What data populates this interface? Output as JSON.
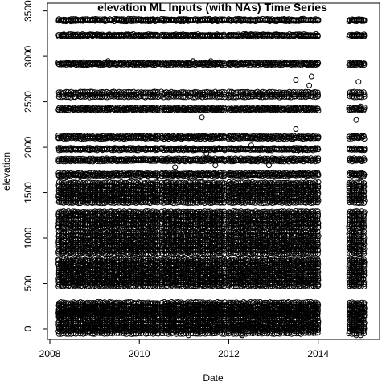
{
  "chart_data": {
    "type": "scatter",
    "title": "elevation ML Inputs (with NAs) Time Series",
    "xlabel": "Date",
    "ylabel": "elevation",
    "xlim": [
      2008.0,
      2015.3
    ],
    "ylim": [
      -80,
      3550
    ],
    "xticks": [
      2008,
      2010,
      2012,
      2014
    ],
    "xtick_labels": [
      "2008",
      "2010",
      "2012",
      "2014"
    ],
    "yticks": [
      0,
      500,
      1000,
      1500,
      2000,
      2500,
      3000,
      3500
    ],
    "ytick_labels": [
      "0",
      "500",
      "1000",
      "1500",
      "2000",
      "2500",
      "3000",
      "3500"
    ],
    "marker": "open-circle",
    "grid": false,
    "legend": "none",
    "segments": [
      {
        "start": 2008.2,
        "end": 2010.45
      },
      {
        "start": 2010.5,
        "end": 2011.95
      },
      {
        "start": 2012.0,
        "end": 2014.0
      },
      {
        "start": 2014.7,
        "end": 2015.05
      }
    ],
    "elevation_bands": [
      {
        "y": 3400,
        "spread": 8
      },
      {
        "y": 3230,
        "spread": 8
      },
      {
        "y": 2920,
        "spread": 10
      },
      {
        "y": 2580,
        "spread": 25
      },
      {
        "y": 2420,
        "spread": 12
      },
      {
        "y": 2110,
        "spread": 12
      },
      {
        "y": 1980,
        "spread": 8
      },
      {
        "y": 1860,
        "spread": 12
      },
      {
        "y": 1700,
        "spread": 12
      },
      {
        "y": 1500,
        "spread": 110
      },
      {
        "y": 1200,
        "spread": 90
      },
      {
        "y": 950,
        "spread": 120
      },
      {
        "y": 620,
        "spread": 150
      },
      {
        "y": 230,
        "spread": 60
      },
      {
        "y": 90,
        "spread": 90
      },
      {
        "y": -20,
        "spread": 30
      }
    ],
    "scattered_points": [
      {
        "x": 2009.3,
        "y": 2950
      },
      {
        "x": 2011.2,
        "y": 2950
      },
      {
        "x": 2011.6,
        "y": 2950
      },
      {
        "x": 2011.4,
        "y": 2330
      },
      {
        "x": 2013.5,
        "y": 2740
      },
      {
        "x": 2013.5,
        "y": 2200
      },
      {
        "x": 2013.85,
        "y": 2780
      },
      {
        "x": 2013.8,
        "y": 2680
      },
      {
        "x": 2014.9,
        "y": 2720
      },
      {
        "x": 2014.85,
        "y": 2300
      },
      {
        "x": 2014.95,
        "y": 2450
      },
      {
        "x": 2011.5,
        "y": 1930
      },
      {
        "x": 2011.7,
        "y": 1800
      },
      {
        "x": 2010.8,
        "y": 1780
      },
      {
        "x": 2012.9,
        "y": 1800
      },
      {
        "x": 2013.6,
        "y": 1950
      },
      {
        "x": 2012.5,
        "y": 2020
      },
      {
        "x": 2009.9,
        "y": 830
      },
      {
        "x": 2012.1,
        "y": 880
      },
      {
        "x": 2012.8,
        "y": 820
      },
      {
        "x": 2013.2,
        "y": 880
      },
      {
        "x": 2011.1,
        "y": -70
      },
      {
        "x": 2012.3,
        "y": -70
      },
      {
        "x": 2014.85,
        "y": -70
      },
      {
        "x": 2014.95,
        "y": -70
      }
    ]
  }
}
